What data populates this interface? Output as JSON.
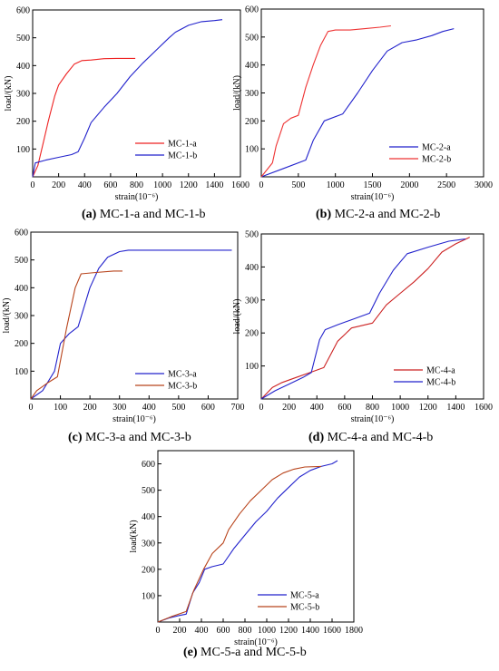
{
  "chart_data": [
    {
      "id": "a",
      "type": "line",
      "caption_letter": "(a)",
      "caption_text": "MC-1-a and MC-1-b",
      "xlabel": "strain(10⁻⁶)",
      "ylabel": "load/(kN)",
      "xlim": [
        0,
        1600
      ],
      "ylim": [
        0,
        600
      ],
      "xticks": [
        0,
        200,
        400,
        600,
        800,
        1000,
        1200,
        1400,
        1600
      ],
      "yticks": [
        100,
        200,
        300,
        400,
        500,
        600
      ],
      "legend_position": "bottom-right",
      "series": [
        {
          "name": "MC-1-a",
          "color": "#ee2222",
          "points": [
            [
              0,
              0
            ],
            [
              40,
              40
            ],
            [
              80,
              120
            ],
            [
              120,
              200
            ],
            [
              170,
              290
            ],
            [
              200,
              330
            ],
            [
              260,
              370
            ],
            [
              320,
              405
            ],
            [
              380,
              418
            ],
            [
              450,
              420
            ],
            [
              550,
              425
            ],
            [
              650,
              426
            ],
            [
              790,
              426
            ]
          ]
        },
        {
          "name": "MC-1-b",
          "color": "#2222cc",
          "points": [
            [
              0,
              0
            ],
            [
              20,
              50
            ],
            [
              100,
              60
            ],
            [
              200,
              70
            ],
            [
              300,
              80
            ],
            [
              350,
              90
            ],
            [
              400,
              140
            ],
            [
              450,
              195
            ],
            [
              550,
              250
            ],
            [
              650,
              300
            ],
            [
              750,
              360
            ],
            [
              850,
              410
            ],
            [
              950,
              455
            ],
            [
              1050,
              500
            ],
            [
              1100,
              520
            ],
            [
              1200,
              545
            ],
            [
              1300,
              558
            ],
            [
              1400,
              562
            ],
            [
              1460,
              565
            ]
          ]
        }
      ]
    },
    {
      "id": "b",
      "type": "line",
      "caption_letter": "(b)",
      "caption_text": "MC-2-a and MC-2-b",
      "xlabel": "strain(10⁻⁶)",
      "ylabel": "load/(kN)",
      "xlim": [
        0,
        3000
      ],
      "ylim": [
        0,
        600
      ],
      "xticks": [
        0,
        500,
        1000,
        1500,
        2000,
        2500,
        3000
      ],
      "yticks": [
        100,
        200,
        300,
        400,
        500,
        600
      ],
      "legend_position": "bottom-right",
      "series": [
        {
          "name": "MC-2-a",
          "color": "#2222cc",
          "points": [
            [
              0,
              0
            ],
            [
              300,
              30
            ],
            [
              600,
              60
            ],
            [
              700,
              130
            ],
            [
              850,
              200
            ],
            [
              1100,
              225
            ],
            [
              1300,
              300
            ],
            [
              1500,
              380
            ],
            [
              1700,
              450
            ],
            [
              1900,
              480
            ],
            [
              2100,
              490
            ],
            [
              2300,
              505
            ],
            [
              2450,
              520
            ],
            [
              2600,
              530
            ]
          ]
        },
        {
          "name": "MC-2-b",
          "color": "#ee3333",
          "points": [
            [
              0,
              0
            ],
            [
              150,
              50
            ],
            [
              200,
              110
            ],
            [
              300,
              190
            ],
            [
              400,
              210
            ],
            [
              500,
              220
            ],
            [
              600,
              320
            ],
            [
              700,
              400
            ],
            [
              800,
              470
            ],
            [
              900,
              520
            ],
            [
              1000,
              525
            ],
            [
              1200,
              525
            ],
            [
              1400,
              530
            ],
            [
              1600,
              535
            ],
            [
              1750,
              540
            ]
          ]
        }
      ]
    },
    {
      "id": "c",
      "type": "line",
      "caption_letter": "(c)",
      "caption_text": "MC-3-a and MC-3-b",
      "xlabel": "strain(10⁻⁶)",
      "ylabel": "load/(kN)",
      "xlim": [
        0,
        700
      ],
      "ylim": [
        0,
        600
      ],
      "xticks": [
        0,
        100,
        200,
        300,
        400,
        500,
        600,
        700
      ],
      "yticks": [
        100,
        200,
        300,
        400,
        500,
        600
      ],
      "legend_position": "bottom-right",
      "series": [
        {
          "name": "MC-3-a",
          "color": "#2222cc",
          "points": [
            [
              0,
              0
            ],
            [
              40,
              30
            ],
            [
              80,
              100
            ],
            [
              100,
              200
            ],
            [
              130,
              235
            ],
            [
              160,
              260
            ],
            [
              200,
              400
            ],
            [
              230,
              470
            ],
            [
              260,
              510
            ],
            [
              300,
              530
            ],
            [
              330,
              535
            ],
            [
              500,
              535
            ],
            [
              680,
              535
            ]
          ]
        },
        {
          "name": "MC-3-b",
          "color": "#b8441c",
          "points": [
            [
              0,
              0
            ],
            [
              20,
              30
            ],
            [
              60,
              60
            ],
            [
              90,
              80
            ],
            [
              120,
              250
            ],
            [
              150,
              400
            ],
            [
              170,
              450
            ],
            [
              220,
              455
            ],
            [
              280,
              460
            ],
            [
              310,
              460
            ]
          ]
        }
      ]
    },
    {
      "id": "d",
      "type": "line",
      "caption_letter": "(d)",
      "caption_text": "MC-4-a and MC-4-b",
      "xlabel": "strain(10⁻⁶)",
      "ylabel": "load/(kN)",
      "xlim": [
        0,
        1600
      ],
      "ylim": [
        0,
        500
      ],
      "xticks": [
        0,
        200,
        400,
        600,
        800,
        1000,
        1200,
        1400,
        1600
      ],
      "yticks": [
        100,
        200,
        300,
        400,
        500
      ],
      "legend_position": "bottom-right",
      "series": [
        {
          "name": "MC-4-a",
          "color": "#cc2222",
          "points": [
            [
              0,
              0
            ],
            [
              80,
              35
            ],
            [
              150,
              50
            ],
            [
              250,
              65
            ],
            [
              350,
              80
            ],
            [
              450,
              95
            ],
            [
              550,
              175
            ],
            [
              650,
              215
            ],
            [
              800,
              230
            ],
            [
              900,
              285
            ],
            [
              1000,
              320
            ],
            [
              1100,
              355
            ],
            [
              1200,
              395
            ],
            [
              1300,
              445
            ],
            [
              1400,
              470
            ],
            [
              1500,
              490
            ]
          ]
        },
        {
          "name": "MC-4-b",
          "color": "#2222cc",
          "points": [
            [
              0,
              0
            ],
            [
              100,
              25
            ],
            [
              200,
              45
            ],
            [
              300,
              65
            ],
            [
              360,
              80
            ],
            [
              420,
              180
            ],
            [
              460,
              210
            ],
            [
              550,
              225
            ],
            [
              650,
              240
            ],
            [
              780,
              260
            ],
            [
              850,
              320
            ],
            [
              950,
              390
            ],
            [
              1050,
              440
            ],
            [
              1200,
              460
            ],
            [
              1350,
              478
            ],
            [
              1470,
              485
            ]
          ]
        }
      ]
    },
    {
      "id": "e",
      "type": "line",
      "caption_letter": "(e)",
      "caption_text": "MC-5-a and MC-5-b",
      "xlabel": "strain(10⁻⁶)",
      "ylabel": "load(kN)",
      "xlim": [
        0,
        1800
      ],
      "ylim": [
        0,
        650
      ],
      "xticks": [
        0,
        200,
        400,
        600,
        800,
        1000,
        1200,
        1400,
        1600,
        1800
      ],
      "yticks": [
        100,
        200,
        300,
        400,
        500,
        600
      ],
      "legend_position": "bottom-right",
      "series": [
        {
          "name": "MC-5-a",
          "color": "#2222cc",
          "points": [
            [
              0,
              0
            ],
            [
              100,
              15
            ],
            [
              200,
              25
            ],
            [
              260,
              30
            ],
            [
              320,
              110
            ],
            [
              380,
              150
            ],
            [
              430,
              200
            ],
            [
              500,
              210
            ],
            [
              600,
              220
            ],
            [
              700,
              280
            ],
            [
              800,
              330
            ],
            [
              900,
              380
            ],
            [
              1000,
              420
            ],
            [
              1100,
              470
            ],
            [
              1200,
              510
            ],
            [
              1300,
              550
            ],
            [
              1400,
              575
            ],
            [
              1500,
              590
            ],
            [
              1600,
              600
            ],
            [
              1650,
              612
            ]
          ]
        },
        {
          "name": "MC-5-b",
          "color": "#b8441c",
          "points": [
            [
              0,
              0
            ],
            [
              120,
              20
            ],
            [
              260,
              40
            ],
            [
              330,
              120
            ],
            [
              420,
              200
            ],
            [
              500,
              260
            ],
            [
              600,
              300
            ],
            [
              650,
              350
            ],
            [
              750,
              410
            ],
            [
              850,
              460
            ],
            [
              950,
              500
            ],
            [
              1050,
              540
            ],
            [
              1150,
              565
            ],
            [
              1250,
              580
            ],
            [
              1350,
              588
            ],
            [
              1500,
              590
            ]
          ]
        }
      ]
    }
  ]
}
